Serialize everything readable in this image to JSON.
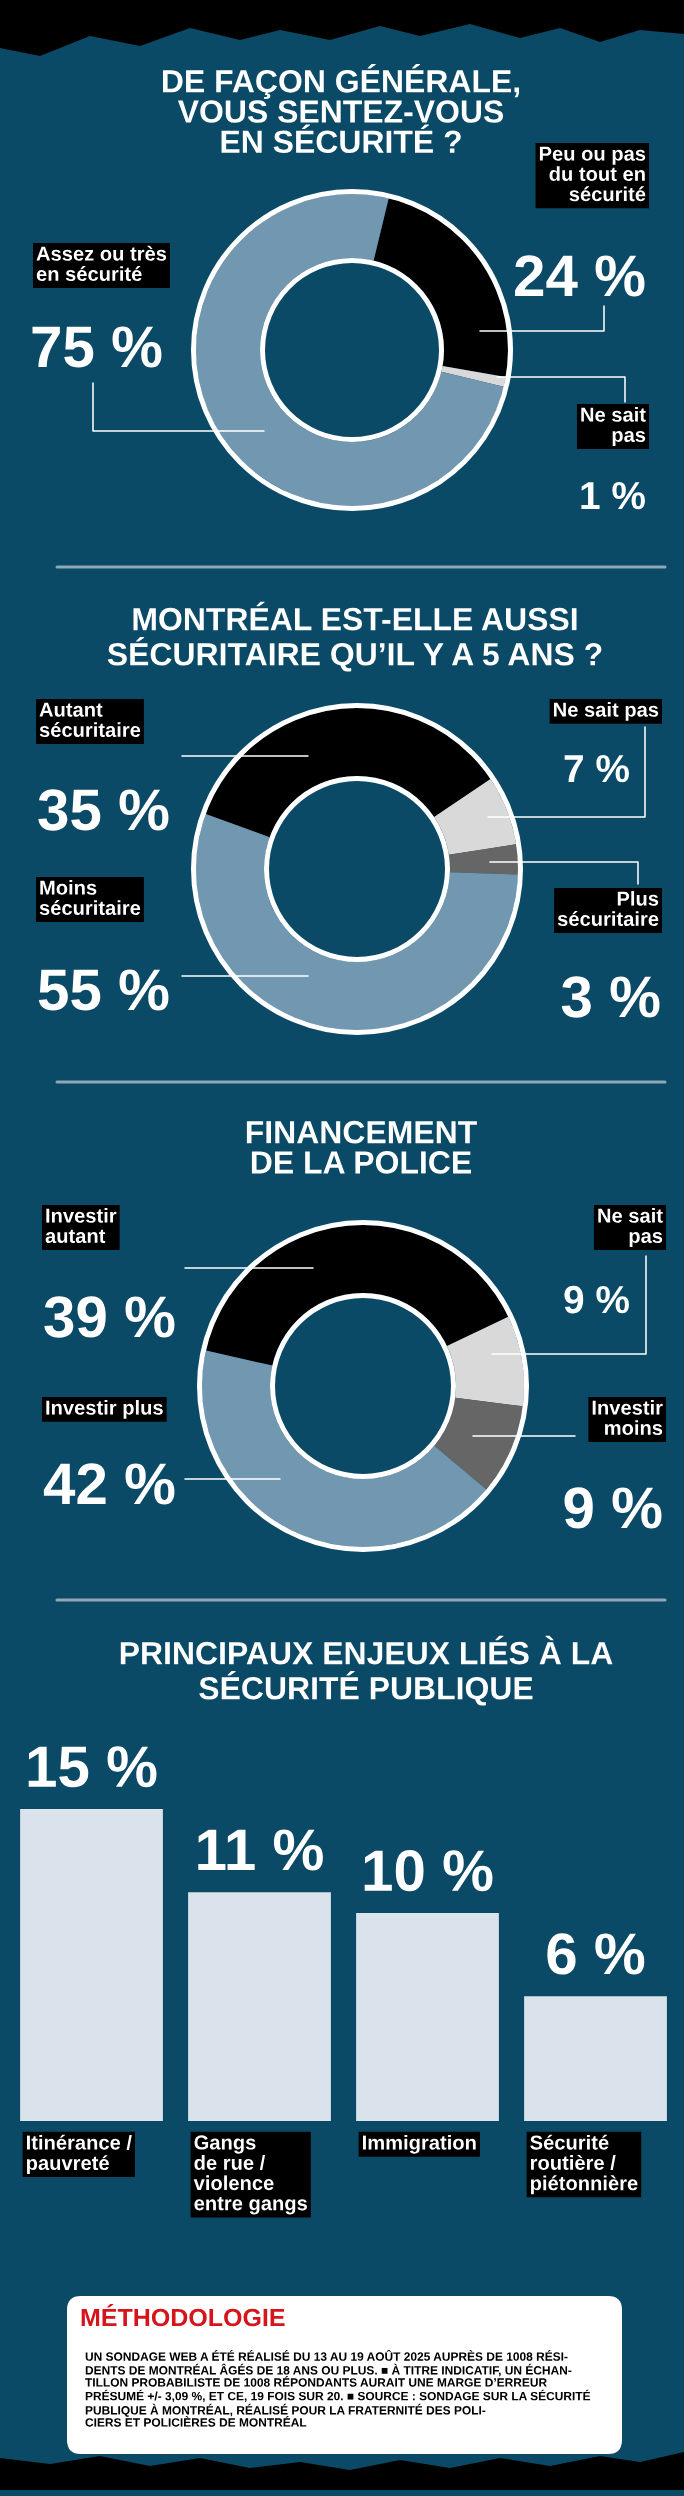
{
  "chart_data": [
    {
      "type": "donut",
      "title": "DE FAÇON GÉNÉRALE,\nVOUS SENTEZ-VOUS\nEN SÉCURITÉ ?",
      "categories": [
        "Peu ou pas\ndu tout en\nsécurité",
        "Ne sait\npas",
        "Assez ou très\nen sécurité"
      ],
      "values": [
        24,
        1,
        75
      ],
      "colors": [
        "#000000",
        "#d9d9d9",
        "#7198b0"
      ],
      "value_labels": [
        "24 %",
        "1 %",
        "75 %"
      ]
    },
    {
      "type": "donut",
      "title": "MONTRÉAL EST-ELLE AUSSI\nSÉCURITAIRE QU’IL Y A 5 ANS ?",
      "categories": [
        "Autant\nsécuritaire",
        "Ne sait pas",
        "Plus\nsécuritaire",
        "Moins\nsécuritaire"
      ],
      "values": [
        35,
        7,
        3,
        55
      ],
      "colors": [
        "#000000",
        "#d9d9d9",
        "#666666",
        "#7198b0"
      ],
      "value_labels": [
        "35 %",
        "7 %",
        "3 %",
        "55 %"
      ]
    },
    {
      "type": "donut",
      "title": "FINANCEMENT\nDE LA POLICE",
      "categories": [
        "Investir\nautant",
        "Ne sait\npas",
        "Investir\nmoins",
        "Investir plus"
      ],
      "values": [
        39,
        9,
        9,
        42
      ],
      "colors": [
        "#000000",
        "#d9d9d9",
        "#666666",
        "#7198b0"
      ],
      "value_labels": [
        "39 %",
        "9 %",
        "9 %",
        "42 %"
      ]
    },
    {
      "type": "bar",
      "title": "PRINCIPAUX ENJEUX LIÉS À LA\nSÉCURITÉ PUBLIQUE",
      "categories": [
        "Itinérance /\npauvreté",
        "Gangs\nde rue /\nviolence\nentre gangs",
        "Immigration",
        "Sécurité\nroutière /\npiétonnière"
      ],
      "values": [
        15,
        11,
        10,
        6
      ],
      "value_labels": [
        "15 %",
        "11 %",
        "10 %",
        "6 %"
      ],
      "color": "#dae3eb",
      "tick_labels": "x"
    },
    {
      "type": "other",
      "title": "MÉTHODOLOGIE",
      "annotations": [
        "UN SONDAGE WEB A ÉTÉ RÉALISÉ DU 13 AU 19 AOÛT 2025 AUPRÈS DE 1008 RÉSI-\nDENTS DE MONTRÉAL ÂGÉS DE 18 ANS OU PLUS. ■ À TITRE INDICATIF, UN ÉCHAN-\nTILLON PROBABILISTE DE 1008 RÉPONDANTS AURAIT UNE MARGE D’ERREUR\nPRÉSUMÉ +/- 3,09 %, ET CE, 19 FOIS SUR 20. ■ SOURCE : SONDAGE SUR LA SÉCURITÉ\nPUBLIQUE À MONTRÉAL, RÉALISÉ POUR LA FRATERNITÉ DES POLI-\nCIERS ET POLICIÈRES DE MONTRÉAL"
      ]
    }
  ]
}
